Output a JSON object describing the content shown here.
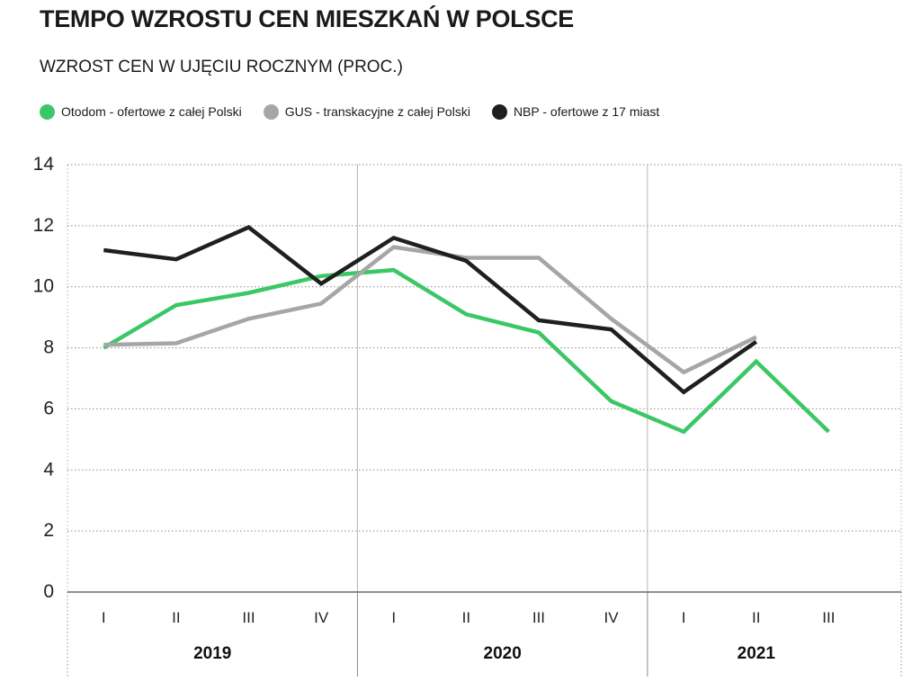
{
  "chart_data": {
    "type": "line",
    "title": "TEMPO WZROSTU CEN MIESZKAŃ W POLSCE",
    "subtitle": "WZROST CEN W UJĘCIU ROCZNYM (PROC.)",
    "categories": [
      "I",
      "II",
      "III",
      "IV",
      "I",
      "II",
      "III",
      "IV",
      "I",
      "II",
      "III"
    ],
    "groups": [
      {
        "label": "2019",
        "count": 4
      },
      {
        "label": "2020",
        "count": 4
      },
      {
        "label": "2021",
        "count": 3
      }
    ],
    "series": [
      {
        "name": "Otodom - ofertowe z całej Polski",
        "color": "#3cc767",
        "values": [
          8.0,
          9.4,
          9.8,
          10.35,
          10.55,
          9.1,
          8.5,
          6.25,
          5.25,
          7.55,
          5.25
        ]
      },
      {
        "name": "GUS - transkacyjne z całej Polski",
        "color": "#a6a6a6",
        "values": [
          8.1,
          8.15,
          8.95,
          9.45,
          11.3,
          10.95,
          10.95,
          8.95,
          7.2,
          8.35,
          null
        ]
      },
      {
        "name": "NBP - ofertowe z 17 miast",
        "color": "#1f1f1f",
        "values": [
          11.2,
          10.9,
          11.95,
          10.1,
          11.6,
          10.85,
          8.9,
          8.6,
          6.55,
          8.2,
          null
        ]
      }
    ],
    "ylim": [
      0,
      14
    ],
    "yticks": [
      "0",
      "2",
      "4",
      "6",
      "8",
      "10",
      "12",
      "14"
    ],
    "grid": true,
    "legend_position": "top-left"
  }
}
